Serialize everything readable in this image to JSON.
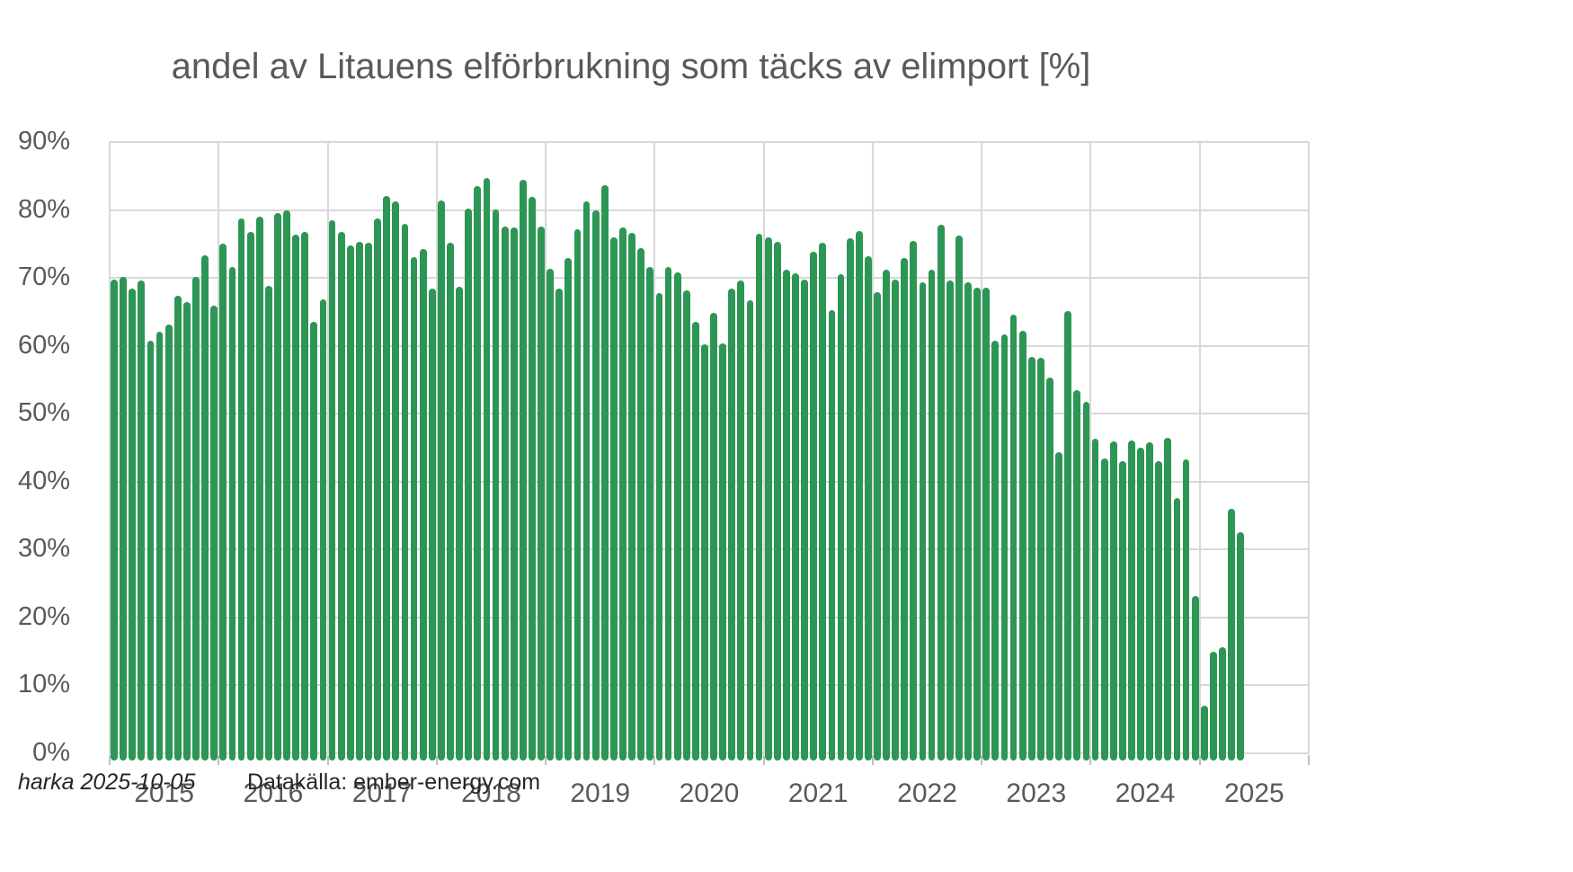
{
  "title": "andel av Litauens elförbrukning som täcks av elimport [%]",
  "footer": {
    "signature": "harka 2025-10-05",
    "source": "Datakälla: ember-energy.com"
  },
  "colors": {
    "bar": "#2d9655",
    "grid": "#d8d8d8",
    "tick": "#bfbfbf",
    "axis_text": "#595959",
    "footer_text": "#262626",
    "background": "#ffffff"
  },
  "chart_data": {
    "type": "bar",
    "title": "andel av Litauens elförbrukning som täcks av elimport [%]",
    "xlabel": "",
    "ylabel": "",
    "unit": "%",
    "ylim": [
      0,
      90
    ],
    "y_tick_labels": [
      "90%",
      "80%",
      "70%",
      "60%",
      "50%",
      "40%",
      "30%",
      "20%",
      "10%",
      "0%"
    ],
    "x_year_labels": [
      "2015",
      "2016",
      "2017",
      "2018",
      "2019",
      "2020",
      "2021",
      "2022",
      "2023",
      "2024",
      "2025"
    ],
    "grid": "both",
    "legend": "none",
    "start_month": "2015-01",
    "end_month": "2025-05",
    "values_by_year": {
      "2015": [
        69.7,
        70.2,
        68.4,
        69.6,
        60.7,
        62.1,
        63.1,
        67.4,
        66.5,
        70.2,
        73.3,
        65.9
      ],
      "2016": [
        75.1,
        71.6,
        78.8,
        76.7,
        79.0,
        68.8,
        79.5,
        79.9,
        76.4,
        76.7,
        63.5,
        66.8
      ],
      "2017": [
        78.5,
        76.8,
        74.8,
        75.3,
        75.2,
        78.8,
        82.1,
        81.3,
        78.0,
        73.1,
        74.3,
        68.4
      ],
      "2018": [
        81.4,
        75.2,
        68.7,
        80.2,
        83.5,
        84.7,
        80.1,
        77.5,
        77.4,
        84.5,
        81.9,
        77.6
      ],
      "2019": [
        71.3,
        68.4,
        72.9,
        77.2,
        81.2,
        80.0,
        83.7,
        76.0,
        77.4,
        76.6,
        74.4,
        71.6
      ],
      "2020": [
        67.8,
        71.6,
        70.8,
        68.2,
        63.5,
        60.2,
        64.9,
        60.3,
        68.4,
        69.6,
        66.7,
        76.5
      ],
      "2021": [
        76.0,
        75.3,
        71.2,
        70.7,
        69.7,
        73.9,
        75.2,
        65.2,
        70.5,
        75.8,
        76.9,
        73.2
      ],
      "2022": [
        67.9,
        71.2,
        69.7,
        72.9,
        75.5,
        69.4,
        71.2,
        77.8,
        69.6,
        76.3,
        69.4,
        68.5
      ],
      "2023": [
        68.5,
        60.7,
        61.7,
        64.6,
        62.2,
        58.4,
        58.2,
        55.3,
        44.4,
        65.1,
        53.5,
        51.7
      ],
      "2024": [
        46.3,
        43.4,
        45.9,
        43.0,
        46.1,
        45.0,
        45.8,
        43.0,
        46.4,
        37.6,
        43.3,
        23.2
      ],
      "2025": [
        7.0,
        14.9,
        15.6,
        36.0,
        32.5
      ]
    }
  }
}
